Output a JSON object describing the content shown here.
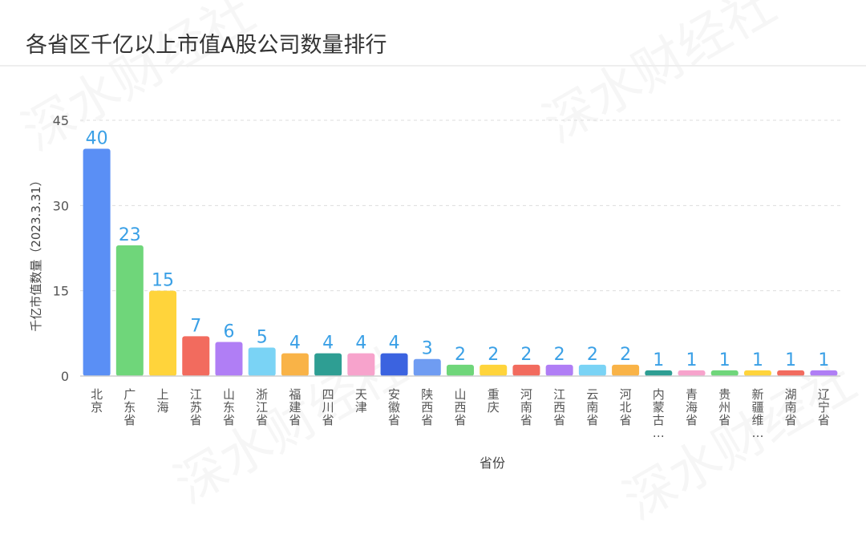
{
  "chart_data": {
    "type": "bar",
    "title": "各省区千亿以上市值A股公司数量排行",
    "xlabel": "省份",
    "ylabel": "千亿市值数量（2023.3.31）",
    "ylim": [
      0,
      45
    ],
    "yticks": [
      0,
      15,
      30,
      45
    ],
    "grid": true,
    "categories": [
      "北京",
      "广东省",
      "上海",
      "江苏省",
      "山东省",
      "浙江省",
      "福建省",
      "四川省",
      "天津",
      "安徽省",
      "陕西省",
      "山西省",
      "重庆",
      "河南省",
      "江西省",
      "云南省",
      "河北省",
      "内蒙古…",
      "青海省",
      "贵州省",
      "新疆维…",
      "湖南省",
      "辽宁省"
    ],
    "values": [
      40,
      23,
      15,
      7,
      6,
      5,
      4,
      4,
      4,
      4,
      3,
      2,
      2,
      2,
      2,
      2,
      2,
      1,
      1,
      1,
      1,
      1,
      1
    ],
    "bar_colors": [
      "#5a8ff5",
      "#6fd67a",
      "#ffd43b",
      "#f26b5e",
      "#b07ef5",
      "#7ad3f5",
      "#f9b347",
      "#2e9e93",
      "#f7a3cc",
      "#3b63e0",
      "#6f9cf2",
      "#6fd67a",
      "#ffd43b",
      "#f26b5e",
      "#b07ef5",
      "#7ad3f5",
      "#f9b347",
      "#2e9e93",
      "#f7a3cc",
      "#6fd67a",
      "#ffd43b",
      "#f26b5e",
      "#b07ef5"
    ],
    "label_color": "#3aa0e6"
  },
  "watermark": "深水财经社"
}
